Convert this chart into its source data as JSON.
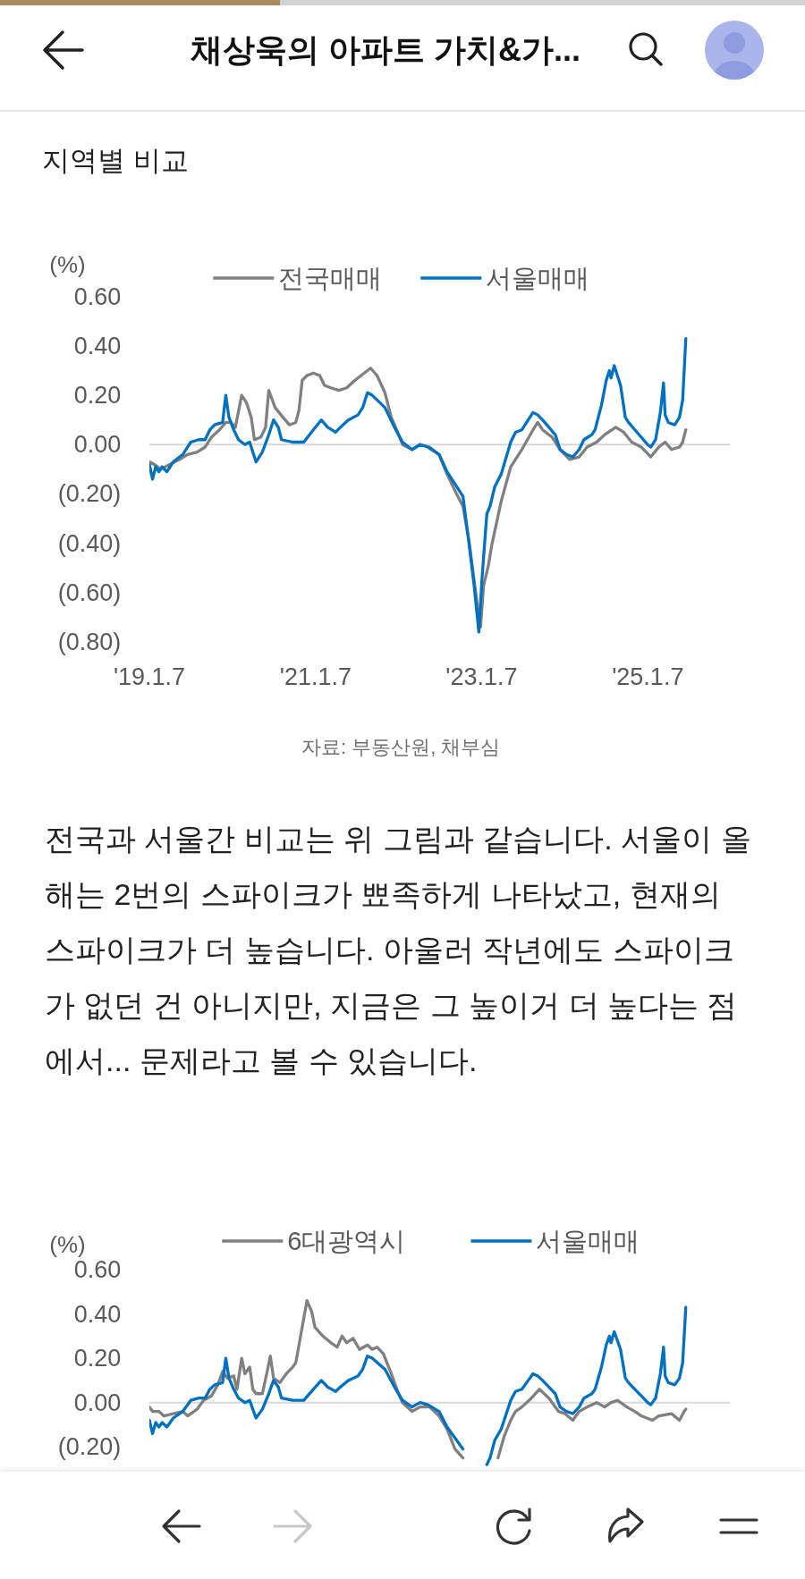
{
  "chart_data": [
    {
      "type": "line",
      "title": "지역별 비교",
      "ylabel": "(%)",
      "annotations": [
        "채상욱의 아파트 가치&가...",
        "자료: 부동산원, 채부심",
        "전국과 서울간 비교는 위 그림과 같습니다. 서울이 올해는 2번의 스파이크가 뾰족하게 나타났고, 현재의 스파이크가 더 높습니다. 아울러 작년에도 스파이크가 없던 건 아니지만, 지금은 그 높이거 더 높다는 점에서... 문제라고 볼 수 있습니다."
      ],
      "xlim": [
        "2019-01-07",
        "2026-01-05"
      ],
      "xticks": [
        {
          "value": "2019-01-07",
          "label": "'19.1.7"
        },
        {
          "value": "2021-01-07",
          "label": "'21.1.7"
        },
        {
          "value": "2023-01-07",
          "label": "'23.1.7"
        },
        {
          "value": "2025-01-07",
          "label": "'25.1.7"
        }
      ],
      "ylim": [
        -0.8,
        0.6
      ],
      "yticks": [
        {
          "value": -0.8,
          "label": "(0.80)"
        },
        {
          "value": -0.6,
          "label": "(0.60)"
        },
        {
          "value": -0.4,
          "label": "(0.40)"
        },
        {
          "value": -0.2,
          "label": "(0.20)"
        },
        {
          "value": 0,
          "label": "0.00"
        },
        {
          "value": 0.2,
          "label": "0.20"
        },
        {
          "value": 0.4,
          "label": "0.40"
        },
        {
          "value": 0.6,
          "label": "0.60"
        }
      ],
      "ref_lines": [
        {
          "axis": "y",
          "value": 0,
          "color": "#d9d9d9"
        }
      ],
      "legend": "top",
      "line_style": "solid",
      "series": [
        {
          "name": "전국매매",
          "color": "#808080",
          "x": [
            "2019-01-07",
            "2019-01-28",
            "2019-02-25",
            "2019-04-08",
            "2019-05-20",
            "2019-06-24",
            "2019-08-05",
            "2019-09-09",
            "2019-10-07",
            "2019-11-11",
            "2019-12-09",
            "2019-12-30",
            "2020-01-20",
            "2020-02-17",
            "2020-03-09",
            "2020-03-30",
            "2020-04-13",
            "2020-05-11",
            "2020-06-01",
            "2020-06-15",
            "2020-07-13",
            "2020-08-17",
            "2020-09-14",
            "2020-10-12",
            "2020-10-26",
            "2020-11-09",
            "2020-11-30",
            "2020-12-28",
            "2021-01-25",
            "2021-02-15",
            "2021-03-15",
            "2021-04-19",
            "2021-05-24",
            "2021-06-28",
            "2021-08-09",
            "2021-09-06",
            "2021-10-04",
            "2021-11-08",
            "2021-12-06",
            "2022-01-03",
            "2022-01-24",
            "2022-03-07",
            "2022-04-11",
            "2022-05-23",
            "2022-07-04",
            "2022-08-08",
            "2022-09-19",
            "2022-10-17",
            "2022-11-14",
            "2022-12-12",
            "2023-01-02",
            "2023-01-16",
            "2023-02-06",
            "2023-02-20",
            "2023-03-13",
            "2023-04-03",
            "2023-05-15",
            "2023-07-03",
            "2023-08-21",
            "2023-09-11",
            "2023-10-02",
            "2023-11-13",
            "2023-12-18",
            "2024-01-29",
            "2024-03-11",
            "2024-04-15",
            "2024-05-27",
            "2024-07-01",
            "2024-08-19",
            "2024-09-23",
            "2024-10-28",
            "2024-12-09",
            "2025-01-20",
            "2025-02-24",
            "2025-03-24",
            "2025-04-21",
            "2025-05-26",
            "2025-06-09",
            "2025-06-23"
          ],
          "values": [
            -0.07,
            -0.08,
            -0.1,
            -0.08,
            -0.06,
            -0.04,
            -0.03,
            -0.01,
            0.03,
            0.06,
            0.09,
            0.09,
            0.07,
            0.2,
            0.17,
            0.11,
            0.02,
            0.03,
            0.07,
            0.22,
            0.15,
            0.11,
            0.08,
            0.09,
            0.14,
            0.26,
            0.28,
            0.29,
            0.28,
            0.24,
            0.23,
            0.22,
            0.23,
            0.26,
            0.29,
            0.31,
            0.28,
            0.21,
            0.11,
            0.05,
            0.0,
            -0.02,
            0.0,
            -0.01,
            -0.04,
            -0.12,
            -0.2,
            -0.25,
            -0.4,
            -0.6,
            -0.74,
            -0.57,
            -0.49,
            -0.41,
            -0.32,
            -0.23,
            -0.09,
            -0.02,
            0.06,
            0.09,
            0.06,
            0.03,
            -0.02,
            -0.06,
            -0.05,
            -0.01,
            0.01,
            0.04,
            0.07,
            0.05,
            0.01,
            -0.01,
            -0.05,
            -0.01,
            0.01,
            -0.02,
            -0.01,
            0.01,
            0.06
          ]
        },
        {
          "name": "서울매매",
          "color": "#0070c0",
          "x": [
            "2019-01-07",
            "2019-01-21",
            "2019-02-04",
            "2019-02-18",
            "2019-03-04",
            "2019-03-25",
            "2019-04-22",
            "2019-06-03",
            "2019-07-08",
            "2019-08-12",
            "2019-09-09",
            "2019-09-30",
            "2019-10-21",
            "2019-11-25",
            "2019-12-09",
            "2019-12-23",
            "2020-01-13",
            "2020-02-03",
            "2020-03-02",
            "2020-03-23",
            "2020-04-20",
            "2020-05-18",
            "2020-06-15",
            "2020-07-06",
            "2020-07-27",
            "2020-08-10",
            "2020-09-28",
            "2020-11-16",
            "2020-12-28",
            "2021-02-01",
            "2021-03-01",
            "2021-04-05",
            "2021-04-26",
            "2021-05-31",
            "2021-07-12",
            "2021-08-02",
            "2021-08-23",
            "2021-09-13",
            "2021-11-08",
            "2021-12-20",
            "2022-01-24",
            "2022-03-07",
            "2022-04-11",
            "2022-05-16",
            "2022-07-04",
            "2022-08-08",
            "2022-09-19",
            "2022-10-17",
            "2022-11-07",
            "2022-12-05",
            "2022-12-26",
            "2023-01-09",
            "2023-01-30",
            "2023-02-13",
            "2023-03-06",
            "2023-04-03",
            "2023-05-15",
            "2023-06-05",
            "2023-07-03",
            "2023-07-31",
            "2023-08-21",
            "2023-09-11",
            "2023-10-02",
            "2023-10-30",
            "2023-11-27",
            "2023-12-18",
            "2024-01-15",
            "2024-02-12",
            "2024-03-11",
            "2024-04-01",
            "2024-05-06",
            "2024-05-20",
            "2024-06-17",
            "2024-07-08",
            "2024-07-22",
            "2024-07-29",
            "2024-08-12",
            "2024-08-26",
            "2024-09-09",
            "2024-09-30",
            "2024-10-14",
            "2024-11-11",
            "2024-12-09",
            "2025-01-06",
            "2025-01-20",
            "2025-02-10",
            "2025-03-03",
            "2025-03-17",
            "2025-03-24",
            "2025-04-07",
            "2025-05-05",
            "2025-05-26",
            "2025-06-09",
            "2025-06-23"
          ],
          "values": [
            -0.08,
            -0.14,
            -0.09,
            -0.11,
            -0.09,
            -0.11,
            -0.07,
            -0.04,
            0.01,
            0.02,
            0.02,
            0.06,
            0.08,
            0.09,
            0.2,
            0.11,
            0.06,
            0.02,
            0.0,
            0.01,
            -0.07,
            -0.03,
            0.04,
            0.1,
            0.07,
            0.02,
            0.01,
            0.01,
            0.06,
            0.1,
            0.07,
            0.05,
            0.07,
            0.1,
            0.12,
            0.15,
            0.21,
            0.2,
            0.15,
            0.07,
            0.01,
            -0.02,
            0.0,
            -0.01,
            -0.04,
            -0.11,
            -0.17,
            -0.21,
            -0.36,
            -0.57,
            -0.76,
            -0.54,
            -0.28,
            -0.25,
            -0.17,
            -0.12,
            0.01,
            0.05,
            0.06,
            0.1,
            0.13,
            0.12,
            0.1,
            0.07,
            0.04,
            -0.02,
            -0.04,
            -0.05,
            -0.02,
            0.02,
            0.04,
            0.06,
            0.16,
            0.26,
            0.3,
            0.27,
            0.32,
            0.28,
            0.24,
            0.11,
            0.09,
            0.06,
            0.03,
            0.0,
            -0.01,
            0.02,
            0.13,
            0.25,
            0.12,
            0.09,
            0.08,
            0.11,
            0.18,
            0.43
          ]
        }
      ]
    },
    {
      "type": "line",
      "ylabel": "(%)",
      "xlim": [
        "2019-01-07",
        "2026-01-05"
      ],
      "ylim": [
        -0.3,
        0.6
      ],
      "yticks": [
        {
          "value": -0.2,
          "label": "(0.20)"
        },
        {
          "value": 0,
          "label": "0.00"
        },
        {
          "value": 0.2,
          "label": "0.20"
        },
        {
          "value": 0.4,
          "label": "0.40"
        },
        {
          "value": 0.6,
          "label": "0.60"
        }
      ],
      "tick_labels": "y",
      "ref_lines": [
        {
          "axis": "y",
          "value": 0,
          "color": "#d9d9d9"
        }
      ],
      "legend": "top",
      "line_style": "solid",
      "series": [
        {
          "name": "6대광역시",
          "color": "#808080",
          "x": [
            "2019-01-07",
            "2019-01-21",
            "2019-02-18",
            "2019-03-11",
            "2019-04-22",
            "2019-06-03",
            "2019-06-24",
            "2019-08-05",
            "2019-09-02",
            "2019-10-07",
            "2019-11-04",
            "2019-11-25",
            "2019-12-16",
            "2020-01-13",
            "2020-01-27",
            "2020-02-17",
            "2020-03-02",
            "2020-03-23",
            "2020-04-06",
            "2020-04-20",
            "2020-05-18",
            "2020-06-08",
            "2020-06-22",
            "2020-07-06",
            "2020-08-03",
            "2020-08-31",
            "2020-09-28",
            "2020-10-12",
            "2020-11-02",
            "2020-11-16",
            "2020-11-30",
            "2020-12-21",
            "2021-01-04",
            "2021-02-08",
            "2021-03-15",
            "2021-04-12",
            "2021-05-03",
            "2021-05-24",
            "2021-06-21",
            "2021-07-19",
            "2021-08-23",
            "2021-09-13",
            "2021-10-04",
            "2021-11-01",
            "2021-12-06",
            "2022-01-03",
            "2022-01-24",
            "2022-03-07",
            "2022-04-11",
            "2022-05-23",
            "2022-07-04",
            "2022-08-08",
            "2022-09-12",
            "2022-10-17",
            "2022-12-26",
            "2023-03-20",
            "2023-04-17",
            "2023-05-15",
            "2023-06-05",
            "2023-07-03",
            "2023-08-14",
            "2023-09-18",
            "2023-10-30",
            "2023-12-11",
            "2024-01-08",
            "2024-02-12",
            "2024-03-11",
            "2024-04-15",
            "2024-05-27",
            "2024-07-01",
            "2024-07-29",
            "2024-08-26",
            "2024-10-07",
            "2024-11-11",
            "2024-12-09",
            "2025-01-27",
            "2025-02-24",
            "2025-04-21",
            "2025-05-26",
            "2025-06-16",
            "2025-06-23"
          ],
          "values": [
            -0.02,
            -0.04,
            -0.04,
            -0.06,
            -0.05,
            -0.04,
            -0.06,
            -0.03,
            0.01,
            0.03,
            0.08,
            0.14,
            0.11,
            0.12,
            0.06,
            0.2,
            0.13,
            0.16,
            0.06,
            0.04,
            0.04,
            0.14,
            0.21,
            0.11,
            0.09,
            0.13,
            0.16,
            0.18,
            0.3,
            0.38,
            0.46,
            0.41,
            0.34,
            0.3,
            0.27,
            0.25,
            0.3,
            0.27,
            0.29,
            0.24,
            0.26,
            0.24,
            0.25,
            0.22,
            0.13,
            0.05,
            0.0,
            -0.04,
            -0.02,
            -0.02,
            -0.06,
            -0.12,
            -0.21,
            -0.25,
            null,
            -0.25,
            -0.15,
            -0.08,
            -0.04,
            -0.02,
            0.02,
            0.06,
            0.02,
            -0.04,
            -0.05,
            -0.08,
            -0.04,
            -0.02,
            0.0,
            -0.02,
            0.0,
            0.01,
            -0.02,
            -0.04,
            -0.06,
            -0.08,
            -0.06,
            -0.05,
            -0.08,
            -0.04,
            -0.03
          ]
        },
        {
          "name": "서울매매",
          "color": "#0070c0",
          "x": [
            "2019-01-07",
            "2019-01-21",
            "2019-02-04",
            "2019-02-18",
            "2019-03-04",
            "2019-03-25",
            "2019-04-22",
            "2019-06-03",
            "2019-07-08",
            "2019-08-12",
            "2019-09-09",
            "2019-09-30",
            "2019-10-21",
            "2019-11-25",
            "2019-12-09",
            "2019-12-23",
            "2020-01-13",
            "2020-02-03",
            "2020-03-02",
            "2020-03-23",
            "2020-04-20",
            "2020-05-18",
            "2020-06-15",
            "2020-07-06",
            "2020-07-27",
            "2020-08-10",
            "2020-09-28",
            "2020-11-16",
            "2020-12-28",
            "2021-02-01",
            "2021-03-01",
            "2021-04-05",
            "2021-04-26",
            "2021-05-31",
            "2021-07-12",
            "2021-08-02",
            "2021-08-23",
            "2021-09-13",
            "2021-11-08",
            "2021-12-20",
            "2022-01-24",
            "2022-03-07",
            "2022-04-11",
            "2022-05-16",
            "2022-07-04",
            "2022-08-08",
            "2022-09-19",
            "2022-10-17",
            "2022-11-07",
            "2022-12-05",
            "2022-12-26",
            "2023-01-09",
            "2023-01-30",
            "2023-02-13",
            "2023-03-06",
            "2023-04-03",
            "2023-05-15",
            "2023-06-05",
            "2023-07-03",
            "2023-07-31",
            "2023-08-21",
            "2023-09-11",
            "2023-10-02",
            "2023-10-30",
            "2023-11-27",
            "2023-12-18",
            "2024-01-15",
            "2024-02-12",
            "2024-03-11",
            "2024-04-01",
            "2024-05-06",
            "2024-05-20",
            "2024-06-17",
            "2024-07-08",
            "2024-07-22",
            "2024-07-29",
            "2024-08-12",
            "2024-08-26",
            "2024-09-09",
            "2024-09-30",
            "2024-10-14",
            "2024-11-11",
            "2024-12-09",
            "2025-01-06",
            "2025-01-20",
            "2025-02-10",
            "2025-03-03",
            "2025-03-17",
            "2025-03-24",
            "2025-04-07",
            "2025-05-05",
            "2025-05-26",
            "2025-06-09",
            "2025-06-23"
          ],
          "values": [
            -0.08,
            -0.14,
            -0.09,
            -0.11,
            -0.09,
            -0.11,
            -0.07,
            -0.04,
            0.01,
            0.02,
            0.02,
            0.06,
            0.08,
            0.09,
            0.2,
            0.11,
            0.06,
            0.02,
            0.0,
            0.01,
            -0.07,
            -0.03,
            0.04,
            0.1,
            0.07,
            0.02,
            0.01,
            0.01,
            0.06,
            0.1,
            0.07,
            0.05,
            0.07,
            0.1,
            0.12,
            0.15,
            0.21,
            0.2,
            0.15,
            0.07,
            0.01,
            -0.02,
            0.0,
            -0.01,
            -0.04,
            -0.11,
            -0.17,
            -0.21,
            null,
            null,
            null,
            null,
            -0.28,
            -0.25,
            -0.17,
            -0.12,
            0.01,
            0.05,
            0.06,
            0.1,
            0.13,
            0.12,
            0.1,
            0.07,
            0.04,
            -0.02,
            -0.04,
            -0.05,
            -0.02,
            0.02,
            0.04,
            0.06,
            0.16,
            0.26,
            0.3,
            0.27,
            0.32,
            0.28,
            0.24,
            0.11,
            0.09,
            0.06,
            0.03,
            0.0,
            -0.01,
            0.02,
            0.13,
            0.25,
            0.12,
            0.09,
            0.08,
            0.11,
            0.18,
            0.43
          ]
        }
      ]
    }
  ]
}
